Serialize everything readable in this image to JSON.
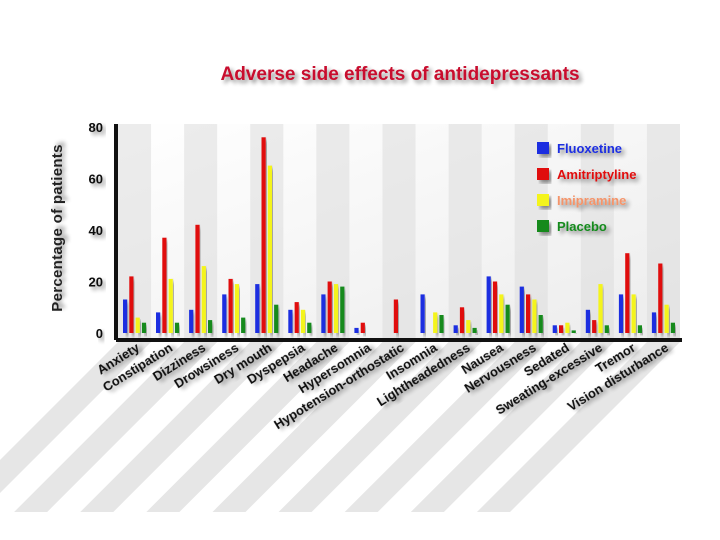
{
  "chart_data": {
    "type": "bar",
    "title": "Adverse side effects of antidepressants",
    "xlabel": "",
    "ylabel": "Percentage of patients",
    "ylim": [
      0,
      80
    ],
    "yticks": [
      0,
      20,
      40,
      60,
      80
    ],
    "grid": false,
    "legend_position": "top-right",
    "categories": [
      "Anxiety",
      "Constipation",
      "Dizziness",
      "Drowsiness",
      "Dry mouth",
      "Dyspepsia",
      "Headache",
      "Hypersomnia",
      "Hypotension-orthostatic",
      "Insomnia",
      "Lightheadedness",
      "Nausea",
      "Nervousness",
      "Sedated",
      "Sweating-excessive",
      "Tremor",
      "Vision disturbance"
    ],
    "series": [
      {
        "name": "Fluoxetine",
        "color": "#1c2ee0",
        "values": [
          13,
          8,
          9,
          15,
          19,
          9,
          15,
          2,
          0,
          15,
          3,
          22,
          18,
          3,
          9,
          15,
          8
        ]
      },
      {
        "name": "Amitriptyline",
        "color": "#e01010",
        "values": [
          22,
          37,
          42,
          21,
          76,
          12,
          20,
          4,
          13,
          0,
          10,
          20,
          15,
          3,
          5,
          31,
          27
        ]
      },
      {
        "name": "Imipramine",
        "color": "#f4f41c",
        "legend_text_color": "#f4946a",
        "values": [
          6,
          21,
          26,
          19,
          65,
          9,
          19,
          0,
          0,
          8,
          5,
          15,
          13,
          4,
          19,
          15,
          11
        ]
      },
      {
        "name": "Placebo",
        "color": "#138a1e",
        "values": [
          4,
          4,
          5,
          6,
          11,
          4,
          18,
          0,
          0,
          7,
          2,
          11,
          7,
          1,
          3,
          3,
          4
        ]
      }
    ]
  }
}
